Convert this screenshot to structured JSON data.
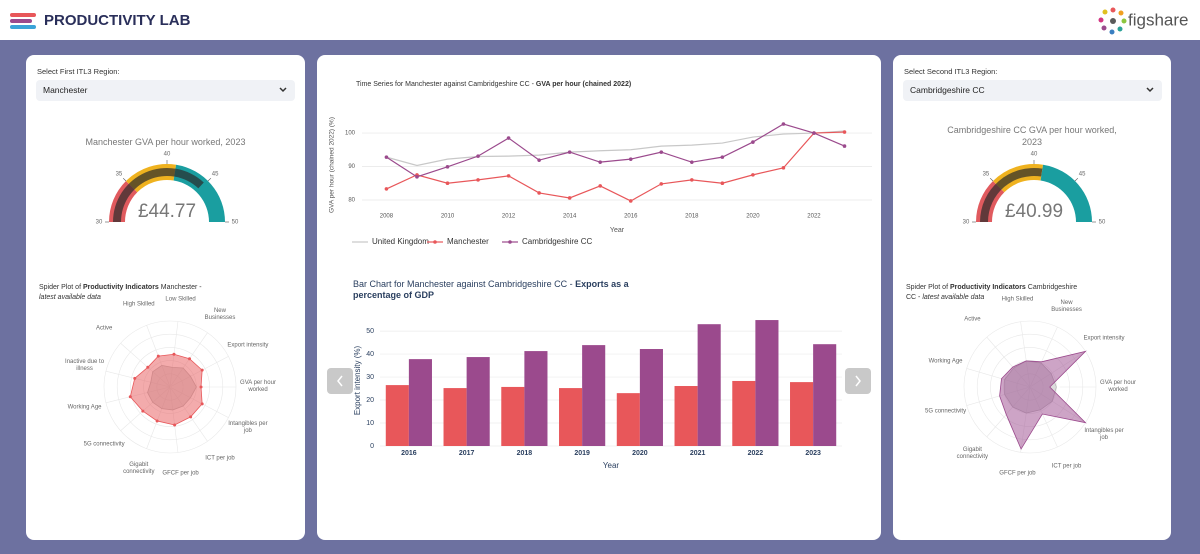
{
  "header": {
    "title": "PRODUCTIVITY LAB",
    "brand": "figshare"
  },
  "left_panel": {
    "select_label": "Select First ITL3 Region:",
    "selected": "Manchester"
  },
  "right_panel": {
    "select_label": "Select Second ITL3 Region:",
    "selected": "Cambridgeshire CC"
  },
  "chart_data": [
    {
      "type": "gauge",
      "title": [
        "Manchester GVA per hour worked, 2023"
      ],
      "value": 44.77,
      "value_label": "£44.77",
      "range": [
        30,
        50
      ],
      "ticks": [
        30,
        35,
        40,
        45,
        50
      ],
      "bar_color": "#2b2b2b",
      "steps": [
        {
          "range": [
            30,
            35
          ],
          "color": "#e05a5e"
        },
        {
          "range": [
            35,
            41
          ],
          "color": "#efb21f"
        },
        {
          "range": [
            41,
            50
          ],
          "color": "#1a9ea0"
        }
      ]
    },
    {
      "type": "radar",
      "title": [
        {
          "text": "Spider Plot of "
        },
        {
          "text": "Productivity Indicators",
          "bold": true
        },
        {
          "text": " Manchester - "
        },
        {
          "text": "latest available data",
          "italic": true
        }
      ],
      "categories": [
        "GVA per hour worked",
        "Export intensity",
        "New Businesses",
        "Low Skilled",
        "High Skilled",
        "Active",
        "Inactive due to illness",
        "Working Age",
        "5G connectivity",
        "Gigabit connectivity",
        "GFCF per job",
        "ICT per job",
        "Intangibles per job"
      ],
      "rlim": [
        0,
        1
      ],
      "series": [
        {
          "color": "#b9b9b9",
          "values": [
            0.4,
            0.35,
            0.35,
            0.3,
            0.35,
            0.35,
            0.3,
            0.35,
            0.35,
            0.35,
            0.35,
            0.35,
            0.35
          ]
        },
        {
          "color": "#e8575a",
          "markers": true,
          "values": [
            0.47,
            0.55,
            0.52,
            0.5,
            0.5,
            0.45,
            0.55,
            0.62,
            0.55,
            0.55,
            0.58,
            0.55,
            0.55
          ]
        }
      ]
    },
    {
      "type": "line",
      "title": [
        {
          "text": "Time Series for Manchester against Cambridgeshire CC - "
        },
        {
          "text": "GVA per hour (chained 2022)",
          "bold": true
        }
      ],
      "x_label": "Year",
      "y_label": "GVA per hour (chained 2022) (%)",
      "x": [
        2008,
        2009,
        2010,
        2011,
        2012,
        2013,
        2014,
        2015,
        2016,
        2017,
        2018,
        2019,
        2020,
        2021,
        2022,
        2023
      ],
      "xlim": [
        2007.2,
        2023.9
      ],
      "xticks": [
        2008,
        2010,
        2012,
        2014,
        2016,
        2018,
        2020,
        2022
      ],
      "ylim": [
        77.6,
        103.3
      ],
      "yticks": [
        80,
        90,
        100
      ],
      "grid": true,
      "series": [
        {
          "name": "United Kingdom",
          "color": "#c8c8c8",
          "values": [
            92.8,
            90.3,
            92.2,
            93.0,
            93.1,
            93.4,
            94.3,
            94.7,
            95.0,
            96.1,
            96.4,
            97.0,
            98.8,
            99.7,
            100,
            100.6
          ]
        },
        {
          "name": "Manchester",
          "color": "#e8575a",
          "markers": true,
          "values": [
            83.3,
            87.5,
            85.0,
            86.0,
            87.2,
            82.1,
            80.6,
            84.2,
            79.7,
            84.8,
            86.0,
            85.0,
            87.5,
            89.6,
            100,
            100.3
          ]
        },
        {
          "name": "Cambridgeshire CC",
          "color": "#9b4a8d",
          "markers": true,
          "values": [
            92.8,
            86.9,
            89.9,
            93.1,
            98.5,
            91.9,
            94.3,
            91.3,
            92.2,
            94.3,
            91.3,
            92.8,
            97.3,
            102.7,
            100,
            96.1
          ]
        }
      ]
    },
    {
      "type": "bar",
      "title": [
        {
          "text": "Bar Chart for Manchester against Cambridgeshire CC - "
        },
        {
          "text": "Exports as a percentage of GDP",
          "bold": true
        }
      ],
      "x_label": "Year",
      "y_label": "Export intensity (%)",
      "categories": [
        "2016",
        "2017",
        "2018",
        "2019",
        "2020",
        "2021",
        "2022",
        "2023"
      ],
      "ylim": [
        0,
        57
      ],
      "yticks": [
        0,
        10,
        20,
        30,
        40,
        50
      ],
      "grid": true,
      "series": [
        {
          "color": "#e8575a",
          "values": [
            26.5,
            25.2,
            25.7,
            25.2,
            23.0,
            26.1,
            28.3,
            27.8
          ]
        },
        {
          "color": "#9b4a8d",
          "values": [
            37.8,
            38.7,
            41.3,
            43.9,
            42.2,
            53.0,
            54.8,
            44.3
          ]
        }
      ]
    },
    {
      "type": "gauge",
      "title": [
        "Cambridgeshire CC GVA per hour worked,",
        "2023"
      ],
      "value": 40.99,
      "value_label": "£40.99",
      "range": [
        30,
        50
      ],
      "ticks": [
        30,
        35,
        40,
        45,
        50
      ],
      "bar_color": "#2b2b2b",
      "steps": [
        {
          "range": [
            30,
            35
          ],
          "color": "#e05a5e"
        },
        {
          "range": [
            35,
            41
          ],
          "color": "#efb21f"
        },
        {
          "range": [
            41,
            50
          ],
          "color": "#1a9ea0"
        }
      ]
    },
    {
      "type": "radar",
      "title": [
        {
          "text": "Spider Plot of "
        },
        {
          "text": "Productivity Indicators",
          "bold": true
        },
        {
          "text": " Cambridgeshire CC - "
        },
        {
          "text": "latest available data",
          "italic": true
        }
      ],
      "categories": [
        "GVA per hour worked",
        "Export intensity",
        "New Businesses",
        "High Skilled",
        "Active",
        "Working Age",
        "5G connectivity",
        "Gigabit connectivity",
        "GFCF per job",
        "ICT per job",
        "Intangibles per job"
      ],
      "rlim": [
        0,
        1
      ],
      "series": [
        {
          "color": "#b9b9b9",
          "values": [
            0.4,
            0.38,
            0.4,
            0.4,
            0.38,
            0.4,
            0.4,
            0.4,
            0.4,
            0.38,
            0.4
          ]
        },
        {
          "color": "#9b4a8d",
          "values": [
            0.3,
            1.0,
            0.42,
            0.4,
            0.4,
            0.45,
            0.48,
            0.55,
            0.95,
            0.45,
            1.0
          ]
        }
      ]
    }
  ]
}
